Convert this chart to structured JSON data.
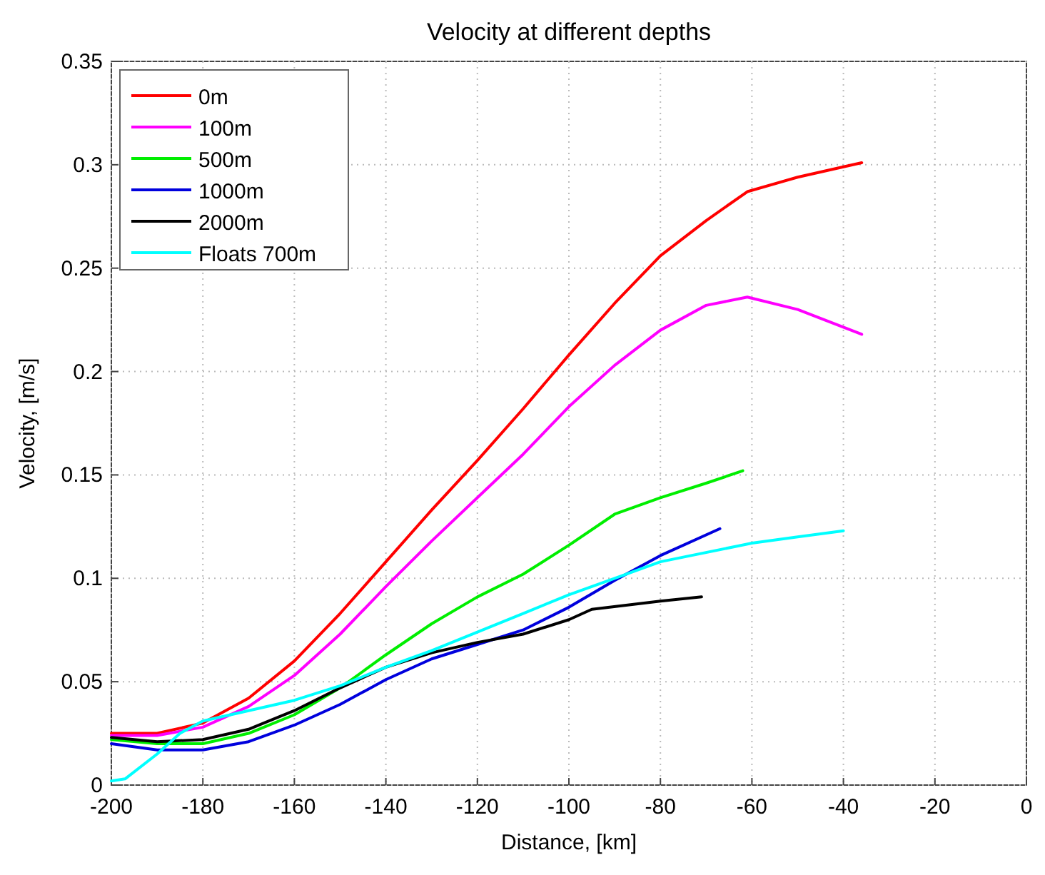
{
  "chart_data": {
    "type": "line",
    "title": "Velocity at different depths",
    "xlabel": "Distance, [km]",
    "ylabel": "Velocity, [m/s]",
    "xlim": [
      -200,
      0
    ],
    "xticks": [
      -200,
      -180,
      -160,
      -140,
      -120,
      -100,
      -80,
      -60,
      -40,
      -20,
      0
    ],
    "ylim": [
      0,
      0.35
    ],
    "yticks": [
      0,
      0.05,
      0.1,
      0.15,
      0.2,
      0.25,
      0.3,
      0.35
    ],
    "grid": true,
    "legend": "top left",
    "line_style": "solid",
    "marker": "none",
    "series": [
      {
        "name": "0m",
        "color": "#ff0000",
        "x": [
          -200,
          -190,
          -180,
          -170,
          -160,
          -150,
          -140,
          -130,
          -120,
          -110,
          -100,
          -90,
          -80,
          -70,
          -61,
          -50,
          -40,
          -36
        ],
        "values": [
          0.025,
          0.025,
          0.03,
          0.042,
          0.06,
          0.083,
          0.108,
          0.133,
          0.157,
          0.182,
          0.208,
          0.233,
          0.256,
          0.273,
          0.287,
          0.294,
          0.299,
          0.301
        ]
      },
      {
        "name": "100m",
        "color": "#ff00ff",
        "x": [
          -200,
          -190,
          -180,
          -170,
          -160,
          -150,
          -140,
          -130,
          -120,
          -110,
          -100,
          -90,
          -80,
          -70,
          -61,
          -50,
          -36
        ],
        "values": [
          0.024,
          0.024,
          0.028,
          0.038,
          0.053,
          0.073,
          0.096,
          0.118,
          0.139,
          0.16,
          0.183,
          0.203,
          0.22,
          0.232,
          0.236,
          0.23,
          0.218
        ]
      },
      {
        "name": "500m",
        "color": "#00ee00",
        "x": [
          -200,
          -190,
          -180,
          -170,
          -160,
          -150,
          -140,
          -130,
          -120,
          -110,
          -100,
          -90,
          -80,
          -70,
          -62
        ],
        "values": [
          0.022,
          0.02,
          0.02,
          0.025,
          0.034,
          0.047,
          0.063,
          0.078,
          0.091,
          0.102,
          0.116,
          0.131,
          0.139,
          0.146,
          0.152
        ]
      },
      {
        "name": "1000m",
        "color": "#0000dd",
        "x": [
          -200,
          -190,
          -180,
          -170,
          -160,
          -150,
          -140,
          -130,
          -120,
          -110,
          -100,
          -90,
          -80,
          -67
        ],
        "values": [
          0.02,
          0.017,
          0.017,
          0.021,
          0.029,
          0.039,
          0.051,
          0.061,
          0.068,
          0.075,
          0.086,
          0.099,
          0.111,
          0.124
        ]
      },
      {
        "name": "2000m",
        "color": "#000000",
        "x": [
          -200,
          -190,
          -180,
          -170,
          -160,
          -150,
          -140,
          -130,
          -120,
          -110,
          -100,
          -95,
          -80,
          -71
        ],
        "values": [
          0.023,
          0.021,
          0.022,
          0.027,
          0.036,
          0.047,
          0.057,
          0.064,
          0.069,
          0.073,
          0.08,
          0.085,
          0.089,
          0.091
        ]
      },
      {
        "name": "Floats 700m",
        "color": "#00ffff",
        "x": [
          -200,
          -197,
          -190,
          -185,
          -180,
          -170,
          -160,
          -150,
          -140,
          -130,
          -120,
          -110,
          -100,
          -90,
          -80,
          -60,
          -50,
          -40
        ],
        "values": [
          0.002,
          0.003,
          0.015,
          0.025,
          0.031,
          0.036,
          0.041,
          0.048,
          0.057,
          0.065,
          0.074,
          0.083,
          0.092,
          0.1,
          0.108,
          0.117,
          0.12,
          0.123
        ]
      }
    ]
  }
}
